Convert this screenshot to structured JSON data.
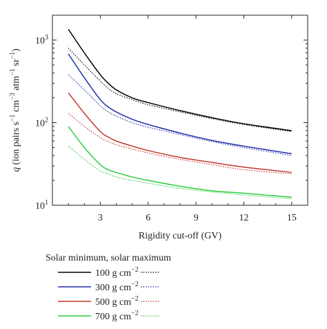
{
  "chart_data": {
    "type": "line",
    "xlabel": "Rigidity cut-off (GV)",
    "ylabel_parts": [
      "q",
      " (ion pairs s",
      "−1",
      " cm",
      "−3",
      " atm",
      "−1",
      " sr",
      "−1",
      ")"
    ],
    "xlim": [
      0,
      16
    ],
    "ylim": [
      10,
      2000
    ],
    "yscale": "log",
    "x_ticks": [
      3,
      6,
      9,
      12,
      15
    ],
    "x_tick_labels": [
      "3",
      "6",
      "9",
      "12",
      "15"
    ],
    "y_ticks": [
      10,
      100,
      1000
    ],
    "y_tick_labels": [
      {
        "base": "10",
        "exp": "1"
      },
      {
        "base": "10",
        "exp": "2"
      },
      {
        "base": "10",
        "exp": "3"
      }
    ],
    "grid": false,
    "legend": {
      "title": "Solar minimum, solar maximum",
      "placement": "below",
      "entries": [
        {
          "label": "100 g cm",
          "exp": "−2"
        },
        {
          "label": "300 g cm",
          "exp": "−2"
        },
        {
          "label": "500 g cm",
          "exp": "−2"
        },
        {
          "label": "700 g cm",
          "exp": "−2"
        }
      ]
    },
    "series": [
      {
        "name": "100 g cm−2 solar minimum",
        "color": "#000000",
        "style": "solid",
        "x": [
          1,
          2,
          3,
          3.5,
          4,
          5,
          6,
          8,
          10,
          12,
          15
        ],
        "y": [
          1350,
          700,
          380,
          300,
          250,
          200,
          175,
          140,
          115,
          97,
          80
        ]
      },
      {
        "name": "100 g cm−2 solar maximum",
        "color": "#000000",
        "style": "dotted",
        "x": [
          1,
          2,
          3,
          3.5,
          4,
          5,
          6,
          8,
          10,
          12,
          15
        ],
        "y": [
          800,
          500,
          320,
          260,
          225,
          190,
          165,
          135,
          112,
          95,
          78
        ]
      },
      {
        "name": "300 g cm−2 solar minimum",
        "color": "#1f2fa8",
        "style": "solid",
        "x": [
          1,
          2,
          3,
          3.5,
          4,
          5,
          6,
          8,
          10,
          12,
          15
        ],
        "y": [
          680,
          350,
          190,
          155,
          135,
          110,
          95,
          75,
          61,
          52,
          42
        ]
      },
      {
        "name": "300 g cm−2 solar maximum",
        "color": "#1f2fa8",
        "style": "dotted",
        "x": [
          1,
          2,
          3,
          3.5,
          4,
          5,
          6,
          8,
          10,
          12,
          15
        ],
        "y": [
          380,
          250,
          160,
          135,
          120,
          100,
          88,
          72,
          59,
          50,
          40
        ]
      },
      {
        "name": "500 g cm−2 solar minimum",
        "color": "#c0392b",
        "style": "solid",
        "x": [
          1,
          2,
          3,
          3.5,
          4,
          5,
          6,
          8,
          10,
          12,
          15
        ],
        "y": [
          230,
          130,
          78,
          67,
          60,
          52,
          46,
          38,
          33,
          29,
          25
        ]
      },
      {
        "name": "500 g cm−2 solar maximum",
        "color": "#c0392b",
        "style": "dotted",
        "x": [
          1,
          2,
          3,
          3.5,
          4,
          5,
          6,
          8,
          10,
          12,
          15
        ],
        "y": [
          130,
          90,
          66,
          59,
          54,
          48,
          43,
          36,
          31,
          27,
          24
        ]
      },
      {
        "name": "700 g cm−2 solar minimum",
        "color": "#2ecc40",
        "style": "solid",
        "x": [
          1,
          2,
          3,
          3.5,
          4,
          5,
          6,
          8,
          10,
          12,
          15
        ],
        "y": [
          90,
          50,
          31,
          27,
          25,
          22,
          20,
          17,
          15,
          14,
          12.5
        ]
      },
      {
        "name": "700 g cm−2 solar maximum",
        "color": "#2ecc40",
        "style": "dotted",
        "x": [
          1,
          2,
          3,
          3.5,
          4,
          5,
          6,
          8,
          10,
          12,
          15
        ],
        "y": [
          52,
          36,
          26,
          24,
          22,
          20,
          18.5,
          16,
          14.5,
          13.3,
          12
        ]
      }
    ]
  }
}
